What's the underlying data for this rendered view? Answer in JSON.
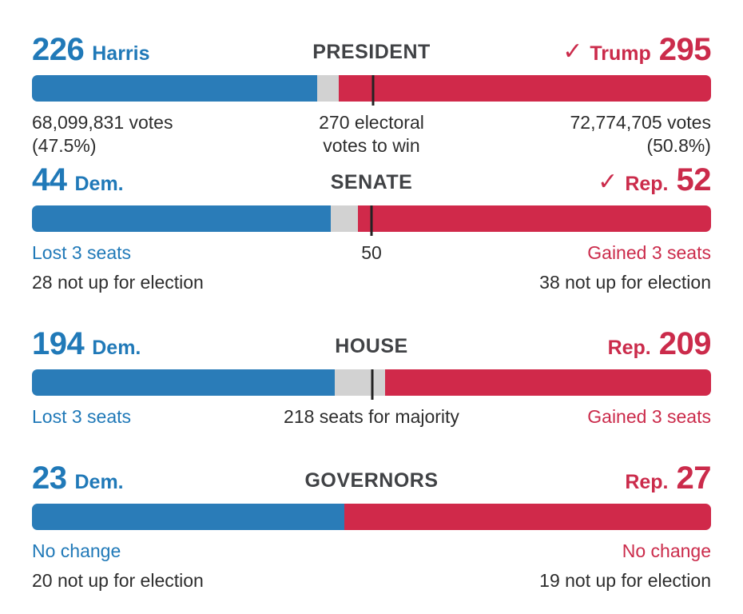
{
  "colors": {
    "dem_bar": "#2a7cb8",
    "dem_text": "#2079b8",
    "rep_bar": "#d0294a",
    "rep_text": "#cb2b4b",
    "uncalled": "#d2d2d2",
    "tick": "#232323",
    "heading": "#404245",
    "text_dark": "#2d2d2d"
  },
  "icons": {
    "winner_check": "✓"
  },
  "chart_data": [
    {
      "type": "stacked-bar",
      "race": "president",
      "title": "PRESIDENT",
      "dem": {
        "label": "Harris",
        "value": "226",
        "pct_width": 42.0
      },
      "uncalled": {
        "value": 17,
        "pct_width": 3.2
      },
      "rep": {
        "label": "Trump",
        "value": "295",
        "pct_width": 54.8,
        "winner_check": true
      },
      "threshold": {
        "value": 270,
        "pct": 50.2,
        "note_line1": "270 electoral",
        "note_line2": "votes to win"
      },
      "dem_note_line1": "68,099,831 votes",
      "dem_note_line2": "(47.5%)",
      "rep_note_line1": "72,774,705 votes",
      "rep_note_line2": "(50.8%)"
    },
    {
      "type": "stacked-bar",
      "race": "senate",
      "title": "SENATE",
      "dem": {
        "label": "Dem.",
        "value": "44",
        "pct_width": 44.0
      },
      "uncalled": {
        "value": 4,
        "pct_width": 4.0
      },
      "rep": {
        "label": "Rep.",
        "value": "52",
        "pct_width": 52.0,
        "winner_check": true
      },
      "threshold": {
        "value": 50,
        "pct": 50.0,
        "note": "50"
      },
      "dem_change": "Lost 3 seats",
      "rep_change": "Gained 3 seats",
      "dem_not_up": "28 not up for election",
      "rep_not_up": "38 not up for election"
    },
    {
      "type": "stacked-bar",
      "race": "house",
      "title": "HOUSE",
      "dem": {
        "label": "Dem.",
        "value": "194",
        "pct_width": 44.6
      },
      "uncalled": {
        "value": 32,
        "pct_width": 7.4
      },
      "rep": {
        "label": "Rep.",
        "value": "209",
        "pct_width": 48.0,
        "winner_check": false
      },
      "threshold": {
        "value": 218,
        "pct": 50.1,
        "note": "218 seats for majority"
      },
      "dem_change": "Lost 3 seats",
      "rep_change": "Gained 3 seats"
    },
    {
      "type": "stacked-bar",
      "race": "governors",
      "title": "GOVERNORS",
      "dem": {
        "label": "Dem.",
        "value": "23",
        "pct_width": 46.0
      },
      "uncalled": {
        "value": 0,
        "pct_width": 0
      },
      "rep": {
        "label": "Rep.",
        "value": "27",
        "pct_width": 54.0,
        "winner_check": false
      },
      "dem_change": "No change",
      "rep_change": "No change",
      "dem_not_up": "20 not up for election",
      "rep_not_up": "19 not up for election"
    }
  ]
}
